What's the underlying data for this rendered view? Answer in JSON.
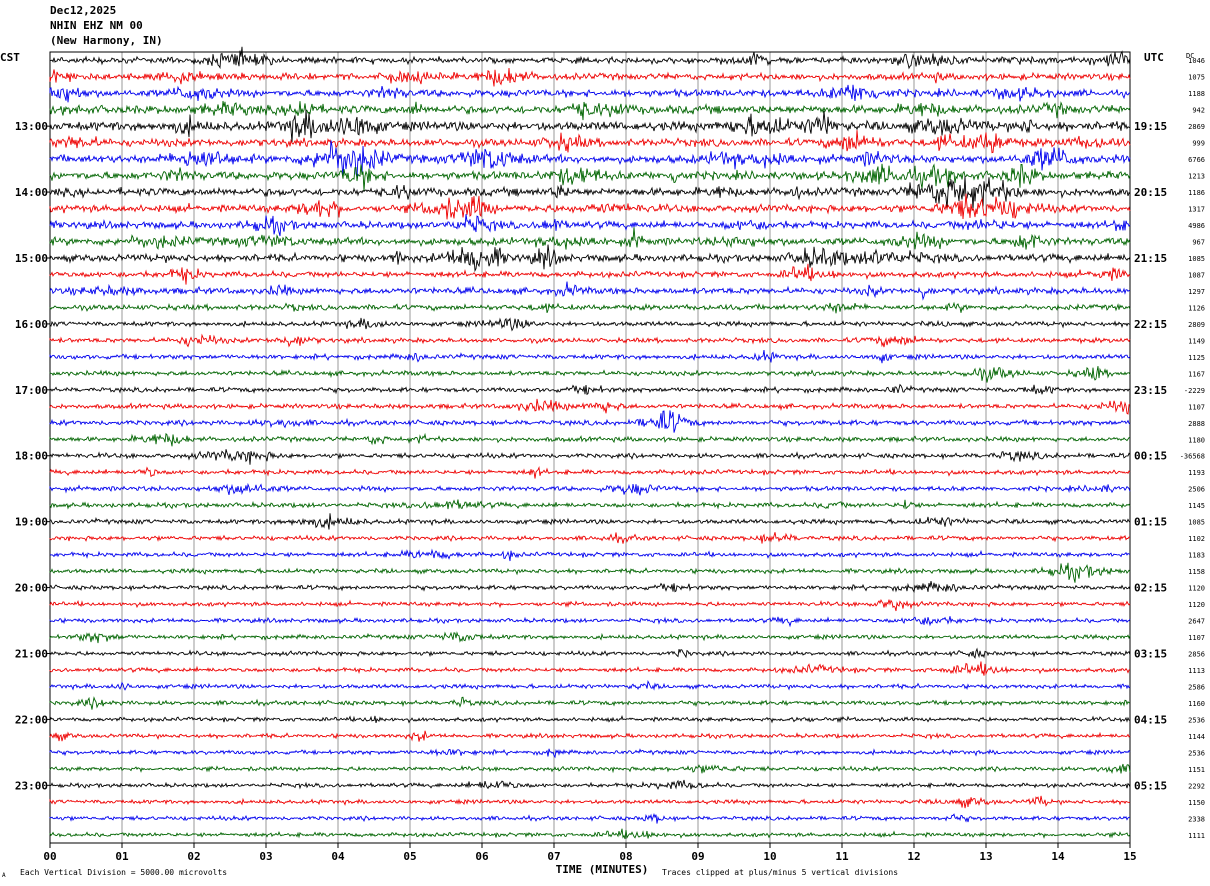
{
  "header": {
    "date": "Dec12,2025",
    "station": "NHIN EHZ NM 00",
    "location": "(New Harmony, IN)"
  },
  "footer": {
    "scale_note": "Each Vertical Division = 5000.00 microvolts",
    "clip_note": "Traces clipped at plus/minus 5 vertical divisions",
    "corner_mark": "A"
  },
  "chart_data": {
    "type": "line",
    "title": "",
    "xlabel": "TIME (MINUTES)",
    "xlim": [
      0,
      15
    ],
    "x_ticks": [
      "00",
      "01",
      "02",
      "03",
      "04",
      "05",
      "06",
      "07",
      "08",
      "09",
      "10",
      "11",
      "12",
      "13",
      "14",
      "15"
    ],
    "left_axis_label": "CST",
    "right_axis_label": "UTC",
    "dc_label": "DC",
    "grid": true,
    "trace_colors": [
      "#000000",
      "#ee0000",
      "#0000ee",
      "#006400"
    ],
    "traces_per_hour": 4,
    "minutes_per_trace": 15,
    "hour_labels_left": [
      "13:00",
      "14:00",
      "15:00",
      "16:00",
      "17:00",
      "18:00",
      "19:00",
      "20:00",
      "21:00",
      "22:00",
      "23:00"
    ],
    "hour_labels_right": [
      "19:15",
      "20:15",
      "21:15",
      "22:15",
      "23:15",
      "00:15",
      "01:15",
      "02:15",
      "03:15",
      "04:15",
      "05:15"
    ],
    "dc_offsets": [
      "1046",
      "1075",
      "1188",
      "942",
      "2869",
      "999",
      "6766",
      "1213",
      "1186",
      "1317",
      "4986",
      "967",
      "1085",
      "1087",
      "1297",
      "1126",
      "2809",
      "1149",
      "1125",
      "1167",
      "-2229",
      "1107",
      "2888",
      "1180",
      "-36568",
      "1193",
      "2506",
      "1145",
      "1085",
      "1102",
      "1183",
      "1158",
      "1120",
      "1120",
      "2647",
      "1107",
      "2856",
      "1113",
      "2586",
      "1160",
      "2536",
      "1144",
      "2536",
      "1151",
      "2292",
      "1150",
      "2338",
      "1111"
    ],
    "trace_activity": [
      0.55,
      0.55,
      0.65,
      0.85,
      0.95,
      0.75,
      0.8,
      0.8,
      0.8,
      0.7,
      0.65,
      0.7,
      0.7,
      0.45,
      0.55,
      0.4,
      0.3,
      0.3,
      0.3,
      0.3,
      0.3,
      0.3,
      0.35,
      0.3,
      0.3,
      0.28,
      0.3,
      0.3,
      0.28,
      0.25,
      0.25,
      0.25,
      0.25,
      0.22,
      0.22,
      0.22,
      0.22,
      0.22,
      0.22,
      0.25,
      0.2,
      0.2,
      0.2,
      0.2,
      0.2,
      0.2,
      0.2,
      0.2
    ]
  }
}
